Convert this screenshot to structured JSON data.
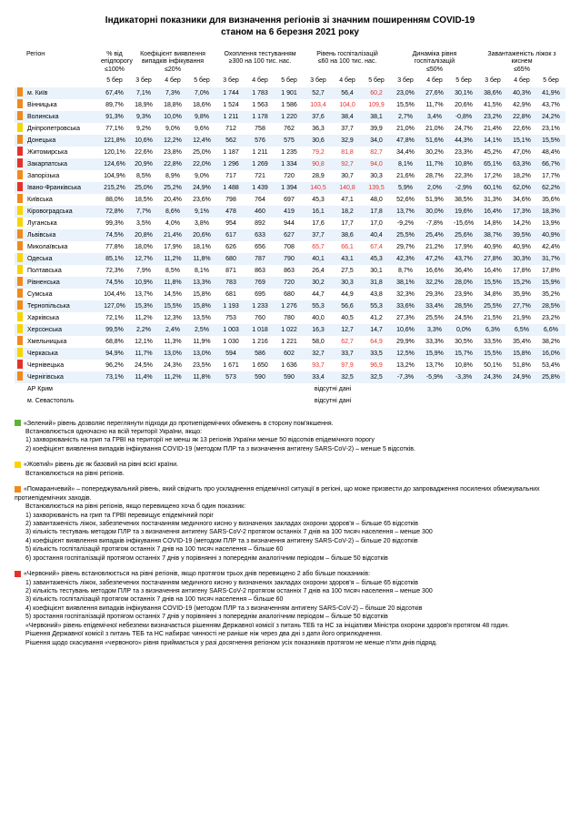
{
  "title_line1": "Індикаторні показники для визначення регіонів зі значним поширенням COVID-19",
  "title_line2": "станом на 6 березня 2021 року",
  "colors": {
    "green": "#5fb236",
    "yellow": "#f9d400",
    "orange": "#f08a1c",
    "red": "#e4322b",
    "highlight_red": "#e4322b",
    "row_odd": "#eaf3fb"
  },
  "headers": {
    "region": "Регіон",
    "group1": {
      "title": "% від\nепідпорогу",
      "sub": "≤100%"
    },
    "group2": {
      "title": "Коефіцієнт виявлення\nвипадків інфікування",
      "sub": "≤20%"
    },
    "group3": {
      "title": "Охоплення тестуванням",
      "sub": "≥300 на 100 тис. нас."
    },
    "group4": {
      "title": "Рівень госпіталізацій",
      "sub": "≤60 на 100 тис. нас."
    },
    "group5": {
      "title": "Динаміка рівня\nгоспіталізацій",
      "sub": "≤50%"
    },
    "group6": {
      "title": "Завантаженість\nліжок з киснем",
      "sub": "≤65%"
    },
    "dates": [
      "5 бер",
      "3 бер",
      "4 бер",
      "5 бер",
      "3 бер",
      "4 бер",
      "5 бер",
      "3 бер",
      "4 бер",
      "5 бер",
      "3 бер",
      "4 бер",
      "5 бер",
      "3 бер",
      "4 бер",
      "5 бер"
    ]
  },
  "rows": [
    {
      "marker": "orange",
      "name": "м. Київ",
      "v": [
        "67,4%",
        "7,1%",
        "7,3%",
        "7,0%",
        "1 744",
        "1 783",
        "1 901",
        "52,7",
        "56,4",
        "60,2",
        "23,0%",
        "27,6%",
        "30,1%",
        "38,6%",
        "40,3%",
        "41,9%"
      ],
      "hl": [
        0,
        0,
        0,
        0,
        0,
        0,
        0,
        0,
        0,
        1,
        0,
        0,
        0,
        0,
        0,
        0
      ]
    },
    {
      "marker": "orange",
      "name": "Вінницька",
      "v": [
        "89,7%",
        "18,9%",
        "18,8%",
        "18,6%",
        "1 524",
        "1 563",
        "1 586",
        "103,4",
        "104,0",
        "109,9",
        "15,5%",
        "11,7%",
        "20,6%",
        "41,5%",
        "42,9%",
        "43,7%"
      ],
      "hl": [
        0,
        0,
        0,
        0,
        0,
        0,
        0,
        1,
        1,
        1,
        0,
        0,
        0,
        0,
        0,
        0
      ]
    },
    {
      "marker": "orange",
      "name": "Волинська",
      "v": [
        "91,3%",
        "9,3%",
        "10,0%",
        "9,8%",
        "1 211",
        "1 178",
        "1 220",
        "37,6",
        "38,4",
        "38,1",
        "2,7%",
        "3,4%",
        "-0,8%",
        "23,2%",
        "22,8%",
        "24,2%"
      ],
      "hl": [
        0,
        0,
        0,
        0,
        0,
        0,
        0,
        0,
        0,
        0,
        0,
        0,
        0,
        0,
        0,
        0
      ]
    },
    {
      "marker": "yellow",
      "name": "Дніпропетровська",
      "v": [
        "77,1%",
        "9,2%",
        "9,0%",
        "9,6%",
        "712",
        "758",
        "762",
        "36,3",
        "37,7",
        "39,9",
        "21,0%",
        "21,0%",
        "24,7%",
        "21,4%",
        "22,6%",
        "23,1%"
      ],
      "hl": [
        0,
        0,
        0,
        0,
        0,
        0,
        0,
        0,
        0,
        0,
        0,
        0,
        0,
        0,
        0,
        0
      ]
    },
    {
      "marker": "orange",
      "name": "Донецька",
      "v": [
        "121,8%",
        "10,6%",
        "12,2%",
        "12,4%",
        "562",
        "576",
        "575",
        "30,6",
        "32,9",
        "34,0",
        "47,8%",
        "51,6%",
        "44,3%",
        "14,1%",
        "15,1%",
        "15,5%"
      ],
      "hl": [
        0,
        0,
        0,
        0,
        0,
        0,
        0,
        0,
        0,
        0,
        0,
        0,
        0,
        0,
        0,
        0
      ]
    },
    {
      "marker": "red",
      "name": "Житомирська",
      "v": [
        "120,1%",
        "22,6%",
        "23,8%",
        "25,0%",
        "1 187",
        "1 211",
        "1 235",
        "79,2",
        "81,8",
        "82,7",
        "34,4%",
        "30,2%",
        "23,3%",
        "45,2%",
        "47,0%",
        "48,4%"
      ],
      "hl": [
        0,
        0,
        0,
        0,
        0,
        0,
        0,
        1,
        1,
        1,
        0,
        0,
        0,
        0,
        0,
        0
      ]
    },
    {
      "marker": "red",
      "name": "Закарпатська",
      "v": [
        "124,6%",
        "20,9%",
        "22,8%",
        "22,0%",
        "1 296",
        "1 269",
        "1 334",
        "90,8",
        "92,7",
        "94,0",
        "8,1%",
        "11,7%",
        "10,8%",
        "65,1%",
        "63,3%",
        "66,7%"
      ],
      "hl": [
        0,
        0,
        0,
        0,
        0,
        0,
        0,
        1,
        1,
        1,
        0,
        0,
        0,
        0,
        0,
        0
      ]
    },
    {
      "marker": "orange",
      "name": "Запорізька",
      "v": [
        "104,9%",
        "8,5%",
        "8,9%",
        "9,0%",
        "717",
        "721",
        "720",
        "28,9",
        "30,7",
        "30,3",
        "21,6%",
        "28,7%",
        "22,3%",
        "17,2%",
        "18,2%",
        "17,7%"
      ],
      "hl": [
        0,
        0,
        0,
        0,
        0,
        0,
        0,
        0,
        0,
        0,
        0,
        0,
        0,
        0,
        0,
        0
      ]
    },
    {
      "marker": "red",
      "name": "Івано-Франківська",
      "v": [
        "215,2%",
        "25,0%",
        "25,2%",
        "24,9%",
        "1 488",
        "1 439",
        "1 394",
        "140,5",
        "140,8",
        "139,5",
        "5,9%",
        "2,0%",
        "-2,9%",
        "60,1%",
        "62,0%",
        "62,2%"
      ],
      "hl": [
        0,
        0,
        0,
        0,
        0,
        0,
        0,
        1,
        1,
        1,
        0,
        0,
        0,
        0,
        0,
        0
      ]
    },
    {
      "marker": "orange",
      "name": "Київська",
      "v": [
        "88,0%",
        "18,5%",
        "20,4%",
        "23,6%",
        "798",
        "764",
        "697",
        "45,3",
        "47,1",
        "48,0",
        "52,6%",
        "51,9%",
        "38,5%",
        "31,3%",
        "34,6%",
        "35,6%"
      ],
      "hl": [
        0,
        0,
        0,
        0,
        0,
        0,
        0,
        0,
        0,
        0,
        0,
        0,
        0,
        0,
        0,
        0
      ]
    },
    {
      "marker": "yellow",
      "name": "Кіровоградська",
      "v": [
        "72,8%",
        "7,7%",
        "8,6%",
        "9,1%",
        "478",
        "460",
        "419",
        "16,1",
        "18,2",
        "17,8",
        "13,7%",
        "30,0%",
        "19,6%",
        "16,4%",
        "17,3%",
        "18,3%"
      ],
      "hl": [
        0,
        0,
        0,
        0,
        0,
        0,
        0,
        0,
        0,
        0,
        0,
        0,
        0,
        0,
        0,
        0
      ]
    },
    {
      "marker": "yellow",
      "name": "Луганська",
      "v": [
        "99,3%",
        "3,5%",
        "4,0%",
        "3,8%",
        "954",
        "892",
        "944",
        "17,6",
        "17,7",
        "17,0",
        "-9,2%",
        "-7,8%",
        "-15,6%",
        "14,8%",
        "14,2%",
        "13,9%"
      ],
      "hl": [
        0,
        0,
        0,
        0,
        0,
        0,
        0,
        0,
        0,
        0,
        0,
        0,
        0,
        0,
        0,
        0
      ]
    },
    {
      "marker": "orange",
      "name": "Львівська",
      "v": [
        "74,5%",
        "20,8%",
        "21,4%",
        "20,6%",
        "617",
        "633",
        "627",
        "37,7",
        "38,6",
        "40,4",
        "25,5%",
        "25,4%",
        "25,6%",
        "38,7%",
        "39,5%",
        "40,9%"
      ],
      "hl": [
        0,
        0,
        0,
        0,
        0,
        0,
        0,
        0,
        0,
        0,
        0,
        0,
        0,
        0,
        0,
        0
      ]
    },
    {
      "marker": "orange",
      "name": "Миколаївська",
      "v": [
        "77,8%",
        "18,0%",
        "17,9%",
        "18,1%",
        "626",
        "656",
        "708",
        "65,7",
        "66,1",
        "67,4",
        "29,7%",
        "21,2%",
        "17,9%",
        "40,9%",
        "40,9%",
        "42,4%"
      ],
      "hl": [
        0,
        0,
        0,
        0,
        0,
        0,
        0,
        1,
        1,
        1,
        0,
        0,
        0,
        0,
        0,
        0
      ]
    },
    {
      "marker": "yellow",
      "name": "Одеська",
      "v": [
        "85,1%",
        "12,7%",
        "11,2%",
        "11,8%",
        "680",
        "787",
        "790",
        "40,1",
        "43,1",
        "45,3",
        "42,3%",
        "47,2%",
        "43,7%",
        "27,8%",
        "30,3%",
        "31,7%"
      ],
      "hl": [
        0,
        0,
        0,
        0,
        0,
        0,
        0,
        0,
        0,
        0,
        0,
        0,
        0,
        0,
        0,
        0
      ]
    },
    {
      "marker": "yellow",
      "name": "Полтавська",
      "v": [
        "72,3%",
        "7,9%",
        "8,5%",
        "8,1%",
        "871",
        "863",
        "863",
        "26,4",
        "27,5",
        "30,1",
        "8,7%",
        "16,6%",
        "36,4%",
        "16,4%",
        "17,8%",
        "17,8%"
      ],
      "hl": [
        0,
        0,
        0,
        0,
        0,
        0,
        0,
        0,
        0,
        0,
        0,
        0,
        0,
        0,
        0,
        0
      ]
    },
    {
      "marker": "orange",
      "name": "Рівненська",
      "v": [
        "74,5%",
        "10,9%",
        "11,8%",
        "13,3%",
        "783",
        "769",
        "720",
        "30,2",
        "30,3",
        "31,8",
        "38,1%",
        "32,2%",
        "28,0%",
        "15,5%",
        "15,2%",
        "15,9%"
      ],
      "hl": [
        0,
        0,
        0,
        0,
        0,
        0,
        0,
        0,
        0,
        0,
        0,
        0,
        0,
        0,
        0,
        0
      ]
    },
    {
      "marker": "orange",
      "name": "Сумська",
      "v": [
        "104,4%",
        "13,7%",
        "14,5%",
        "15,8%",
        "681",
        "695",
        "680",
        "44,7",
        "44,9",
        "43,8",
        "32,3%",
        "29,3%",
        "23,9%",
        "34,8%",
        "35,9%",
        "35,2%"
      ],
      "hl": [
        0,
        0,
        0,
        0,
        0,
        0,
        0,
        0,
        0,
        0,
        0,
        0,
        0,
        0,
        0,
        0
      ]
    },
    {
      "marker": "orange",
      "name": "Тернопільська",
      "v": [
        "127,0%",
        "15,3%",
        "15,5%",
        "15,8%",
        "1 193",
        "1 233",
        "1 276",
        "55,3",
        "56,6",
        "55,3",
        "33,6%",
        "33,4%",
        "28,5%",
        "25,5%",
        "27,7%",
        "28,5%"
      ],
      "hl": [
        0,
        0,
        0,
        0,
        0,
        0,
        0,
        0,
        0,
        0,
        0,
        0,
        0,
        0,
        0,
        0
      ]
    },
    {
      "marker": "yellow",
      "name": "Харківська",
      "v": [
        "72,1%",
        "11,2%",
        "12,3%",
        "13,5%",
        "753",
        "760",
        "780",
        "40,0",
        "40,5",
        "41,2",
        "27,3%",
        "25,5%",
        "24,5%",
        "21,5%",
        "21,9%",
        "23,2%"
      ],
      "hl": [
        0,
        0,
        0,
        0,
        0,
        0,
        0,
        0,
        0,
        0,
        0,
        0,
        0,
        0,
        0,
        0
      ]
    },
    {
      "marker": "yellow",
      "name": "Херсонська",
      "v": [
        "99,5%",
        "2,2%",
        "2,4%",
        "2,5%",
        "1 003",
        "1 018",
        "1 022",
        "16,3",
        "12,7",
        "14,7",
        "10,6%",
        "3,3%",
        "0,0%",
        "6,3%",
        "6,5%",
        "6,6%"
      ],
      "hl": [
        0,
        0,
        0,
        0,
        0,
        0,
        0,
        0,
        0,
        0,
        0,
        0,
        0,
        0,
        0,
        0
      ]
    },
    {
      "marker": "orange",
      "name": "Хмельницька",
      "v": [
        "68,8%",
        "12,1%",
        "11,3%",
        "11,9%",
        "1 030",
        "1 216",
        "1 221",
        "58,0",
        "62,7",
        "64,9",
        "29,9%",
        "33,3%",
        "30,5%",
        "33,5%",
        "35,4%",
        "38,2%"
      ],
      "hl": [
        0,
        0,
        0,
        0,
        0,
        0,
        0,
        0,
        1,
        1,
        0,
        0,
        0,
        0,
        0,
        0
      ]
    },
    {
      "marker": "yellow",
      "name": "Черкаська",
      "v": [
        "94,9%",
        "11,7%",
        "13,0%",
        "13,0%",
        "594",
        "586",
        "602",
        "32,7",
        "33,7",
        "33,5",
        "12,5%",
        "15,9%",
        "15,7%",
        "15,5%",
        "15,8%",
        "16,0%"
      ],
      "hl": [
        0,
        0,
        0,
        0,
        0,
        0,
        0,
        0,
        0,
        0,
        0,
        0,
        0,
        0,
        0,
        0
      ]
    },
    {
      "marker": "red",
      "name": "Чернівецька",
      "v": [
        "96,2%",
        "24,5%",
        "24,3%",
        "23,5%",
        "1 671",
        "1 650",
        "1 636",
        "93,7",
        "97,9",
        "96,9",
        "13,2%",
        "13,7%",
        "10,8%",
        "50,1%",
        "51,8%",
        "53,4%"
      ],
      "hl": [
        0,
        0,
        0,
        0,
        0,
        0,
        0,
        1,
        1,
        1,
        0,
        0,
        0,
        0,
        0,
        0
      ]
    },
    {
      "marker": "orange",
      "name": "Чернігівська",
      "v": [
        "73,1%",
        "11,4%",
        "11,2%",
        "11,8%",
        "573",
        "590",
        "590",
        "33,4",
        "32,5",
        "32,5",
        "-7,3%",
        "-5,9%",
        "-3,3%",
        "24,3%",
        "24,9%",
        "25,8%"
      ],
      "hl": [
        0,
        0,
        0,
        0,
        0,
        0,
        0,
        0,
        0,
        0,
        0,
        0,
        0,
        0,
        0,
        0
      ]
    }
  ],
  "no_data_rows": [
    {
      "name": "АР Крим",
      "text": "відсутні дані"
    },
    {
      "name": "м. Севастополь",
      "text": "відсутні дані"
    }
  ],
  "legend": {
    "green": {
      "title": "«Зелений» рівень дозволяє переглянути підходи до протиепідемічних обмежень в сторону пом'якшення.",
      "lines": [
        "Встановлюється одночасно на всій території України, якщо:",
        "1) захворюваність на грип та ГРВІ на території не менш як 13 регіонів України менше 50 відсотків епідемічного порогу",
        "2) коефіцієнт виявлення випадків інфікування COVID-19 (методом ПЛР та з визначення антигену SARS-CoV-2) – менше 5 відсотків."
      ]
    },
    "yellow": {
      "title": "«Жовтий» рівень діє як базовий на рівні всієї країни.",
      "lines": [
        "Встановлюється на рівні регіонів."
      ]
    },
    "orange": {
      "title": "«Помаранчевий» – попереджувальний рівень, який свідчить про ускладнення епідемічної ситуації в регіоні, що може призвести до запровадження посилених обмежувальних протиепідемічних заходів.",
      "lines": [
        "Встановлюється на рівні регіонів, якщо перевищено хоча б один показник:",
        "1) захворюваність на грип та ГРВІ перевищує епідемічний поріг",
        "2) завантаженість ліжок, забезпечених постачанням медичного кисню у визначених закладах охорони здоров'я – більше 65 відсотків",
        "3) кількість тестувань методом ПЛР та з визначення антигену SARS-CoV-2 протягом останніх 7 днів на 100 тисяч населення – менше 300",
        "4) коефіцієнт виявлення випадків інфікування COVID-19 (методом ПЛР та з визначення антигену SARS-CoV-2) – більше 20 відсотків",
        "5) кількість госпіталізацій протягом останніх 7 днів на 100 тисяч населення – більше 60",
        "6) зростання госпіталізацій протягом останніх 7 днів у порівнянні з попереднім аналогічним періодом – більше 50 відсотків"
      ]
    },
    "red": {
      "title": "«Червоний» рівень встановлюється на рівні регіонів, якщо протягом трьох днів перевищено 2 або більше показників:",
      "lines": [
        "1) завантаженість ліжок, забезпечених постачанням медичного кисню у визначених закладах охорони здоров'я – більше 65 відсотків",
        "2) кількість тестувань методом ПЛР та з визначення антигену SARS-CoV-2 протягом останніх 7 днів на 100 тисяч населення – менше 300",
        "3) кількість госпіталізацій протягом останніх 7 днів на 100 тисяч населення – більше 60",
        "4) коефіцієнт виявлення випадків інфікування COVID-19 (методом ПЛР та з визначенням антигену SARS-CoV-2) – більше 20 відсотків",
        "5) зростання госпіталізацій протягом останніх 7 днів у порівнянні з попереднім аналогічним періодом – більше 50 відсотків",
        "«Червоний» рівень епідемічної небезпеки визначається рішенням Державної комісії з питань ТЕБ та НС за ініціативи Міністра охорони здоров'я протягом 48 годин.",
        "Рішення Державної комісії з питань ТЕБ та НС набирає чинності не раніше ніж через два дні з дати його оприлюднення.",
        "Рішення щодо скасування «червоного» рівня приймається у разі досягнення регіоном усіх показників протягом не менше п'яти днів підряд."
      ]
    }
  }
}
